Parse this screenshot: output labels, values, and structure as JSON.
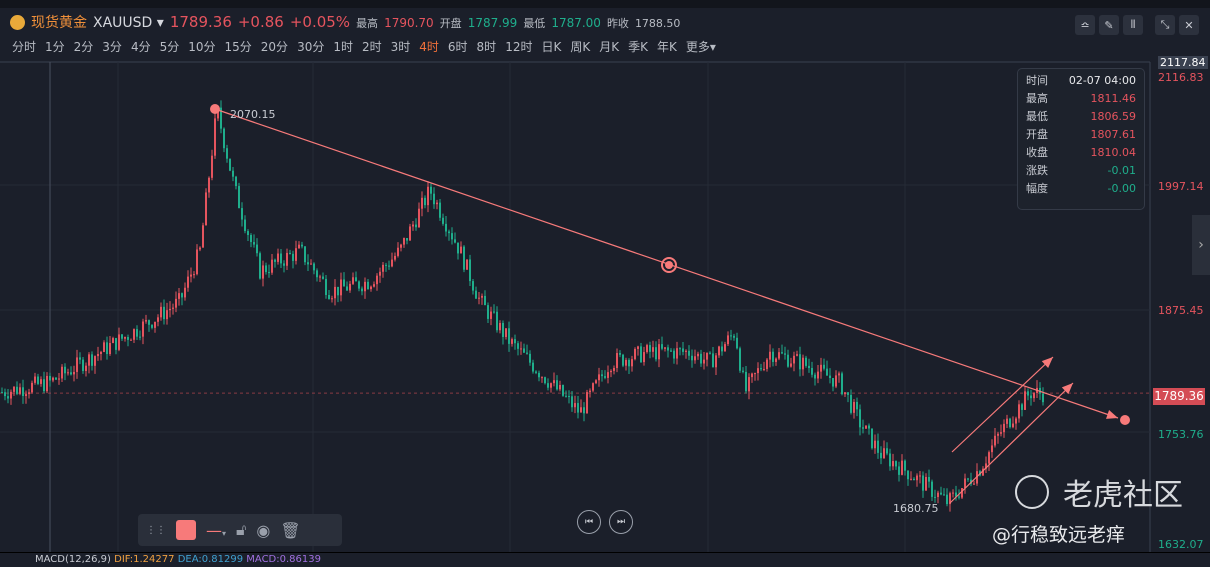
{
  "header": {
    "name": "现货黄金",
    "symbol": "XAUUSD",
    "price": "1789.36",
    "change": "+0.86",
    "change_pct": "+0.05%",
    "high_label": "最高",
    "high": "1790.70",
    "open_label": "开盘",
    "open": "1787.99",
    "low_label": "最低",
    "low": "1787.00",
    "prev_label": "昨收",
    "prev": "1788.50"
  },
  "timeframes": [
    "分时",
    "1分",
    "2分",
    "3分",
    "4分",
    "5分",
    "10分",
    "15分",
    "20分",
    "30分",
    "1时",
    "2时",
    "3时",
    "4时",
    "6时",
    "8时",
    "12时",
    "日K",
    "周K",
    "月K",
    "季K",
    "年K",
    "更多▾"
  ],
  "active_timeframe": "4时",
  "tooltip": [
    {
      "k": "时间",
      "v": "02-07 04:00"
    },
    {
      "k": "最高",
      "v": "1811.46"
    },
    {
      "k": "最低",
      "v": "1806.59"
    },
    {
      "k": "开盘",
      "v": "1807.61"
    },
    {
      "k": "收盘",
      "v": "1810.04"
    },
    {
      "k": "涨跌",
      "v": "-0.01"
    },
    {
      "k": "幅度",
      "v": "-0.00"
    }
  ],
  "axis": {
    "top": "2117.84",
    "top2": "2116.83",
    "l1": "1997.14",
    "l2": "1875.45",
    "current": "1789.36",
    "l3": "1753.76",
    "bottom": "1632.07"
  },
  "annotations": {
    "high": "2070.15",
    "low": "1680.75"
  },
  "macd": {
    "title": "MACD(12,26,9)",
    "dif": "DIF:1.24277",
    "dea": "DEA:0.81299",
    "macd": "MACD:0.86139"
  },
  "watermark": {
    "brand": "老虎社区",
    "user": "@行稳致远老痒"
  },
  "colors": {
    "up": "#e5545e",
    "down": "#1fae8c",
    "drawing": "#f77a7a",
    "active": "#f0703a"
  }
}
